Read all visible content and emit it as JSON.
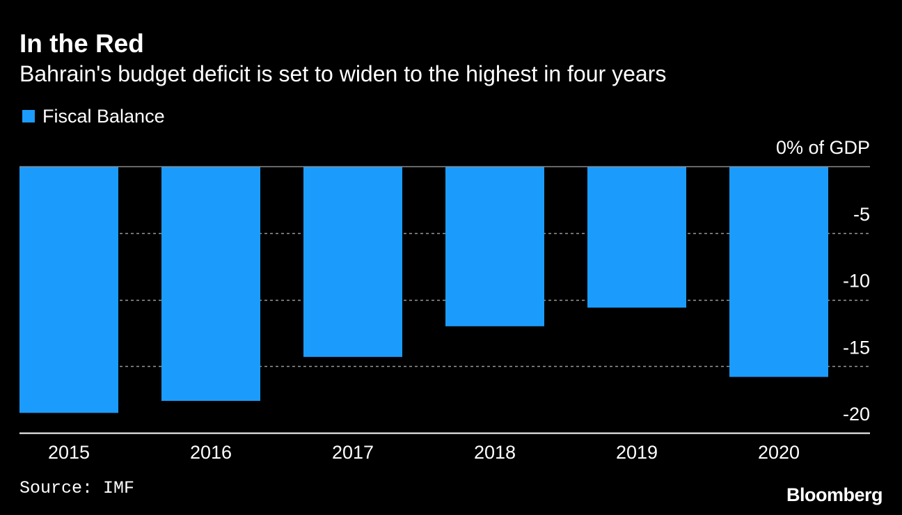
{
  "header": {
    "title": "In the Red",
    "subtitle": "Bahrain's budget deficit is set to widen to the highest in four years"
  },
  "legend": {
    "label": "Fiscal Balance"
  },
  "footer": {
    "source": "Source: IMF",
    "brand": "Bloomberg"
  },
  "colors": {
    "background": "#000000",
    "bar": "#1b9cfc",
    "text": "#ffffff",
    "grid": "#9a9a9a"
  },
  "chart_data": {
    "type": "bar",
    "categories": [
      "2015",
      "2016",
      "2017",
      "2018",
      "2019",
      "2020"
    ],
    "series": [
      {
        "name": "Fiscal Balance",
        "values": [
          -18.5,
          -17.6,
          -14.3,
          -12.0,
          -10.6,
          -15.8
        ]
      }
    ],
    "ylim": [
      -20,
      0
    ],
    "yticks": [
      0,
      -5,
      -10,
      -15,
      -20
    ],
    "ytick_labels": [
      "0% of GDP",
      "-5",
      "-10",
      "-15",
      "-20"
    ],
    "grid": true,
    "legend_position": "top-left"
  }
}
